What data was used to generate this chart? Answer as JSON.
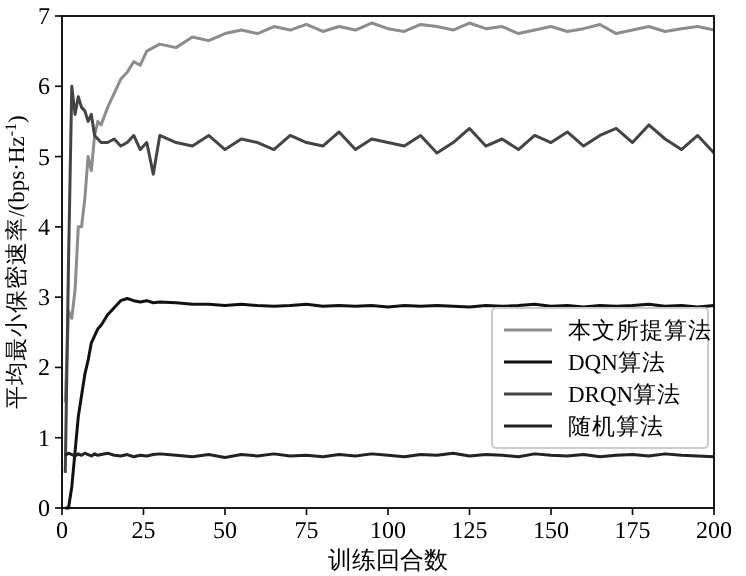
{
  "chart_data": {
    "type": "line",
    "xlabel": "训练回合数",
    "ylabel": "平均最小保密速率/(bps·Hz$^{-1}$)",
    "x": [
      1,
      2,
      3,
      4,
      5,
      6,
      7,
      8,
      9,
      10,
      11,
      12,
      14,
      16,
      18,
      20,
      22,
      24,
      26,
      28,
      30,
      35,
      40,
      45,
      50,
      55,
      60,
      65,
      70,
      75,
      80,
      85,
      90,
      95,
      100,
      105,
      110,
      115,
      120,
      125,
      130,
      135,
      140,
      145,
      150,
      155,
      160,
      165,
      170,
      175,
      180,
      185,
      190,
      195,
      200
    ],
    "xlim": [
      0,
      200
    ],
    "xticks": [
      0,
      25,
      50,
      75,
      100,
      125,
      150,
      175,
      200
    ],
    "ylim": [
      0,
      7
    ],
    "yticks": [
      0,
      1,
      2,
      3,
      4,
      5,
      6,
      7
    ],
    "legend": "bottom right",
    "series": [
      {
        "name": "本文所提算法",
        "color": "#8c8c8c",
        "values": [
          1.5,
          2.8,
          2.7,
          3.1,
          4.0,
          4.0,
          4.4,
          5.0,
          4.8,
          5.3,
          5.5,
          5.45,
          5.7,
          5.9,
          6.1,
          6.2,
          6.35,
          6.3,
          6.5,
          6.55,
          6.6,
          6.55,
          6.7,
          6.65,
          6.75,
          6.8,
          6.75,
          6.85,
          6.8,
          6.88,
          6.78,
          6.85,
          6.8,
          6.9,
          6.82,
          6.78,
          6.88,
          6.85,
          6.8,
          6.9,
          6.82,
          6.85,
          6.75,
          6.8,
          6.85,
          6.78,
          6.82,
          6.88,
          6.75,
          6.8,
          6.85,
          6.78,
          6.82,
          6.85,
          6.8
        ]
      },
      {
        "name": "DQN算法",
        "color": "#111111",
        "values": [
          0,
          0,
          0.3,
          0.8,
          1.3,
          1.6,
          1.9,
          2.1,
          2.35,
          2.45,
          2.55,
          2.6,
          2.75,
          2.85,
          2.95,
          2.98,
          2.95,
          2.93,
          2.95,
          2.92,
          2.93,
          2.92,
          2.9,
          2.9,
          2.88,
          2.9,
          2.88,
          2.87,
          2.88,
          2.9,
          2.87,
          2.88,
          2.87,
          2.88,
          2.86,
          2.88,
          2.87,
          2.88,
          2.87,
          2.86,
          2.88,
          2.87,
          2.88,
          2.9,
          2.87,
          2.88,
          2.86,
          2.88,
          2.87,
          2.88,
          2.9,
          2.87,
          2.88,
          2.86,
          2.88
        ]
      },
      {
        "name": "DRQN算法",
        "color": "#444444",
        "values": [
          0.5,
          3.5,
          6.0,
          5.6,
          5.85,
          5.7,
          5.65,
          5.5,
          5.6,
          5.3,
          5.25,
          5.2,
          5.2,
          5.25,
          5.15,
          5.2,
          5.3,
          5.1,
          5.2,
          4.75,
          5.3,
          5.2,
          5.15,
          5.3,
          5.1,
          5.25,
          5.2,
          5.1,
          5.3,
          5.2,
          5.15,
          5.35,
          5.1,
          5.25,
          5.2,
          5.15,
          5.3,
          5.05,
          5.2,
          5.4,
          5.15,
          5.25,
          5.1,
          5.3,
          5.2,
          5.35,
          5.15,
          5.3,
          5.4,
          5.2,
          5.45,
          5.25,
          5.1,
          5.3,
          5.05
        ]
      },
      {
        "name": "随机算法",
        "color": "#222222",
        "values": [
          0.75,
          0.78,
          0.76,
          0.74,
          0.77,
          0.75,
          0.78,
          0.76,
          0.74,
          0.77,
          0.75,
          0.76,
          0.78,
          0.75,
          0.74,
          0.76,
          0.73,
          0.75,
          0.74,
          0.76,
          0.77,
          0.75,
          0.73,
          0.76,
          0.72,
          0.76,
          0.74,
          0.77,
          0.74,
          0.75,
          0.73,
          0.76,
          0.74,
          0.77,
          0.75,
          0.73,
          0.76,
          0.75,
          0.78,
          0.74,
          0.76,
          0.75,
          0.73,
          0.77,
          0.75,
          0.74,
          0.76,
          0.73,
          0.75,
          0.76,
          0.74,
          0.77,
          0.75,
          0.74,
          0.73
        ]
      }
    ]
  }
}
